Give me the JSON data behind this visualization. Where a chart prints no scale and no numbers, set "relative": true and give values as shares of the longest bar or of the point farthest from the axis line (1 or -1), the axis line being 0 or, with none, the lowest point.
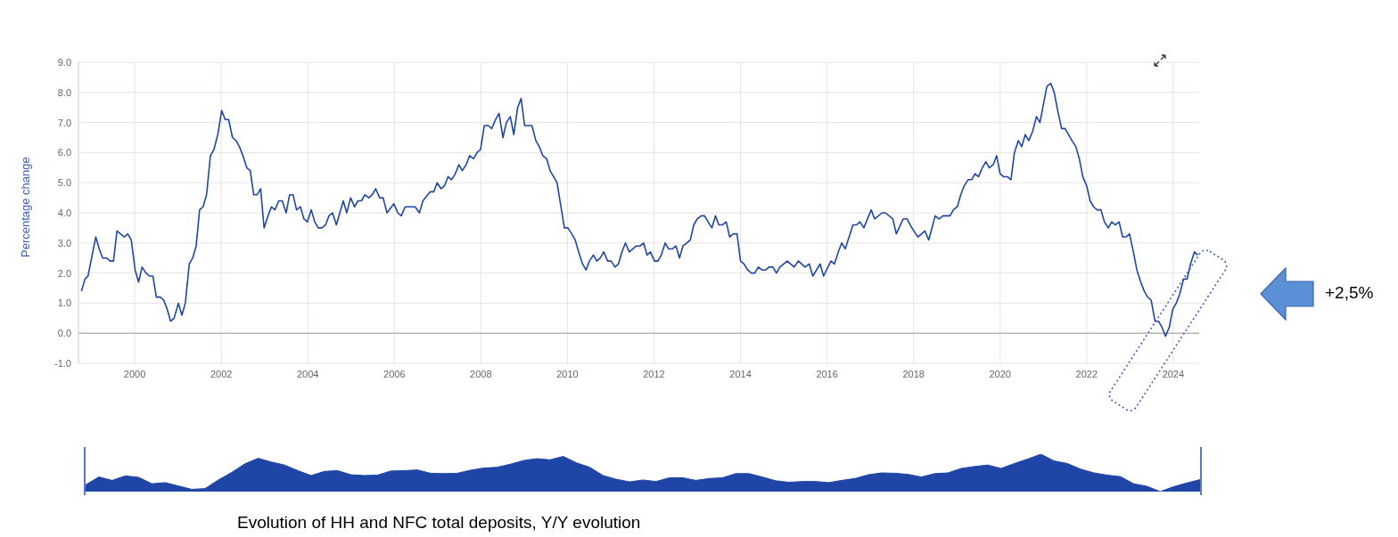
{
  "chart_data": [
    {
      "type": "line",
      "ylabel": "Percentage change",
      "x": [
        1998.77,
        1998.85,
        1998.92,
        1999.1,
        1999.18,
        1999.26,
        1999.35,
        1999.43,
        1999.51,
        1999.59,
        1999.76,
        1999.84,
        1999.92,
        2000.01,
        2000.09,
        2000.17,
        2000.26,
        2000.34,
        2000.42,
        2000.5,
        2000.59,
        2000.67,
        2000.75,
        2000.83,
        2000.91,
        2001.01,
        2001.09,
        2001.17,
        2001.26,
        2001.34,
        2001.42,
        2001.5,
        2001.58,
        2001.66,
        2001.75,
        2001.83,
        2001.92,
        2002.01,
        2002.09,
        2002.17,
        2002.26,
        2002.34,
        2002.42,
        2002.5,
        2002.59,
        2002.67,
        2002.75,
        2002.83,
        2002.91,
        2002.99,
        2003.08,
        2003.16,
        2003.24,
        2003.33,
        2003.41,
        2003.5,
        2003.58,
        2003.66,
        2003.74,
        2003.83,
        2003.91,
        2003.99,
        2004.08,
        2004.16,
        2004.24,
        2004.32,
        2004.41,
        2004.49,
        2004.57,
        2004.66,
        2004.82,
        2004.9,
        2004.99,
        2005.08,
        2005.16,
        2005.24,
        2005.32,
        2005.41,
        2005.49,
        2005.57,
        2005.66,
        2005.74,
        2005.83,
        2005.99,
        2006.08,
        2006.16,
        2006.25,
        2006.48,
        2006.58,
        2006.66,
        2006.83,
        2006.91,
        2006.99,
        2007.08,
        2007.16,
        2007.24,
        2007.32,
        2007.41,
        2007.49,
        2007.57,
        2007.66,
        2007.74,
        2007.83,
        2007.91,
        2007.99,
        2008.08,
        2008.17,
        2008.25,
        2008.34,
        2008.42,
        2008.51,
        2008.59,
        2008.68,
        2008.76,
        2008.85,
        2008.93,
        2009.01,
        2009.18,
        2009.27,
        2009.35,
        2009.43,
        2009.52,
        2009.6,
        2009.68,
        2009.76,
        2009.85,
        2009.93,
        2010.01,
        2010.1,
        2010.18,
        2010.26,
        2010.35,
        2010.43,
        2010.51,
        2010.6,
        2010.68,
        2010.76,
        2010.84,
        2010.93,
        2011.01,
        2011.1,
        2011.18,
        2011.26,
        2011.34,
        2011.43,
        2011.51,
        2011.59,
        2011.68,
        2011.76,
        2011.84,
        2011.92,
        2012.01,
        2012.09,
        2012.17,
        2012.26,
        2012.34,
        2012.42,
        2012.51,
        2012.59,
        2012.67,
        2012.76,
        2012.84,
        2012.92,
        2013.0,
        2013.09,
        2013.17,
        2013.25,
        2013.34,
        2013.42,
        2013.5,
        2013.58,
        2013.67,
        2013.75,
        2013.83,
        2013.92,
        2014.0,
        2014.08,
        2014.17,
        2014.25,
        2014.33,
        2014.41,
        2014.5,
        2014.58,
        2014.66,
        2014.75,
        2014.83,
        2014.91,
        2015.08,
        2015.24,
        2015.34,
        2015.49,
        2015.59,
        2015.67,
        2015.84,
        2015.92,
        2016.09,
        2016.17,
        2016.26,
        2016.34,
        2016.42,
        2016.6,
        2016.68,
        2016.76,
        2016.85,
        2017.02,
        2017.1,
        2017.27,
        2017.35,
        2017.52,
        2017.6,
        2017.76,
        2017.85,
        2017.96,
        2018.1,
        2018.26,
        2018.35,
        2018.5,
        2018.59,
        2018.68,
        2018.84,
        2018.92,
        2019.01,
        2019.09,
        2019.17,
        2019.26,
        2019.34,
        2019.42,
        2019.5,
        2019.59,
        2019.67,
        2019.75,
        2019.84,
        2019.92,
        2020.0,
        2020.08,
        2020.17,
        2020.25,
        2020.33,
        2020.42,
        2020.5,
        2020.58,
        2020.66,
        2020.75,
        2020.84,
        2020.92,
        2021.0,
        2021.08,
        2021.17,
        2021.25,
        2021.33,
        2021.42,
        2021.5,
        2021.58,
        2021.66,
        2021.75,
        2021.83,
        2021.91,
        2022.0,
        2022.08,
        2022.16,
        2022.24,
        2022.33,
        2022.41,
        2022.5,
        2022.58,
        2022.66,
        2022.75,
        2022.83,
        2022.91,
        2022.99,
        2023.08,
        2023.16,
        2023.25,
        2023.33,
        2023.41,
        2023.49,
        2023.58,
        2023.66,
        2023.74,
        2023.82,
        2023.91,
        2023.99,
        2024.07,
        2024.15,
        2024.24,
        2024.32,
        2024.4,
        2024.49,
        2024.57
      ],
      "series": [
        {
          "color": "#1f46a6",
          "values": [
            1.4,
            1.8,
            1.9,
            3.2,
            2.8,
            2.5,
            2.5,
            2.4,
            2.4,
            3.4,
            3.2,
            3.3,
            3.1,
            2.1,
            1.7,
            2.2,
            2.0,
            1.9,
            1.9,
            1.2,
            1.2,
            1.1,
            0.8,
            0.4,
            0.5,
            1.0,
            0.6,
            1.0,
            2.3,
            2.5,
            2.9,
            4.1,
            4.2,
            4.6,
            5.9,
            6.1,
            6.6,
            7.4,
            7.1,
            7.1,
            6.5,
            6.4,
            6.2,
            5.9,
            5.5,
            5.4,
            4.6,
            4.6,
            4.8,
            3.5,
            3.9,
            4.2,
            4.1,
            4.4,
            4.4,
            4.0,
            4.6,
            4.6,
            4.1,
            4.2,
            3.8,
            3.7,
            4.1,
            3.7,
            3.5,
            3.5,
            3.6,
            3.9,
            4.0,
            3.6,
            4.4,
            4.0,
            4.5,
            4.2,
            4.4,
            4.4,
            4.6,
            4.5,
            4.6,
            4.8,
            4.5,
            4.5,
            4.0,
            4.3,
            4.0,
            3.9,
            4.2,
            4.2,
            4.0,
            4.4,
            4.7,
            4.7,
            5.0,
            4.8,
            4.9,
            5.2,
            5.1,
            5.3,
            5.6,
            5.4,
            5.6,
            5.9,
            5.8,
            6.0,
            6.1,
            6.9,
            6.9,
            6.8,
            7.1,
            7.3,
            6.5,
            7.0,
            7.2,
            6.6,
            7.5,
            7.8,
            6.9,
            6.9,
            6.4,
            6.2,
            5.9,
            5.8,
            5.4,
            5.2,
            5.0,
            4.2,
            3.5,
            3.5,
            3.3,
            3.1,
            2.7,
            2.3,
            2.1,
            2.4,
            2.6,
            2.4,
            2.5,
            2.7,
            2.4,
            2.4,
            2.2,
            2.3,
            2.7,
            3.0,
            2.7,
            2.8,
            2.9,
            2.9,
            3.0,
            2.6,
            2.7,
            2.4,
            2.4,
            2.6,
            3.0,
            2.8,
            2.8,
            2.9,
            2.5,
            2.9,
            3.0,
            3.1,
            3.6,
            3.8,
            3.9,
            3.9,
            3.7,
            3.5,
            3.9,
            3.6,
            3.6,
            3.7,
            3.2,
            3.3,
            3.3,
            2.4,
            2.3,
            2.1,
            2.0,
            2.0,
            2.2,
            2.1,
            2.1,
            2.2,
            2.2,
            2.0,
            2.2,
            2.4,
            2.2,
            2.4,
            2.2,
            2.3,
            1.9,
            2.3,
            1.9,
            2.4,
            2.3,
            2.7,
            3.0,
            2.8,
            3.6,
            3.6,
            3.7,
            3.5,
            4.1,
            3.8,
            4.0,
            4.0,
            3.8,
            3.3,
            3.8,
            3.8,
            3.5,
            3.2,
            3.4,
            3.1,
            3.9,
            3.8,
            3.9,
            3.9,
            4.1,
            4.2,
            4.6,
            4.9,
            5.1,
            5.1,
            5.3,
            5.2,
            5.5,
            5.7,
            5.5,
            5.6,
            5.9,
            5.3,
            5.2,
            5.2,
            5.1,
            6.0,
            6.4,
            6.2,
            6.6,
            6.4,
            6.7,
            7.2,
            7.0,
            7.6,
            8.2,
            8.3,
            8.0,
            7.4,
            6.8,
            6.8,
            6.6,
            6.4,
            6.2,
            5.8,
            5.2,
            4.9,
            4.4,
            4.2,
            4.1,
            4.1,
            3.7,
            3.5,
            3.7,
            3.6,
            3.7,
            3.2,
            3.2,
            3.3,
            2.7,
            2.1,
            1.7,
            1.4,
            1.2,
            1.1,
            0.4,
            0.4,
            0.2,
            -0.1,
            0.2,
            0.8,
            1.0,
            1.3,
            1.8,
            1.8,
            2.3,
            2.7,
            2.6
          ]
        }
      ],
      "xlim": [
        1998.7,
        2024.6
      ],
      "xticks": [
        2000,
        2002,
        2004,
        2006,
        2008,
        2010,
        2012,
        2014,
        2016,
        2018,
        2020,
        2022,
        2024
      ],
      "ylim": [
        -1,
        9
      ],
      "yticks": [
        {
          "value": -1,
          "label": "-1.0"
        },
        {
          "value": 0,
          "label": "0.0"
        },
        {
          "value": 1,
          "label": "1.0"
        },
        {
          "value": 2,
          "label": "2.0"
        },
        {
          "value": 3,
          "label": "3.0"
        },
        {
          "value": 4,
          "label": "4.0"
        },
        {
          "value": 5,
          "label": "5.0"
        },
        {
          "value": 6,
          "label": "6.0"
        },
        {
          "value": 7,
          "label": "7.0"
        },
        {
          "value": 8,
          "label": "8.0"
        },
        {
          "value": 9,
          "label": "9.0"
        }
      ],
      "ref_lines": [
        {
          "axis": "y",
          "value": 0,
          "color": "#9a9a9a"
        }
      ],
      "grid": true,
      "marker": "none",
      "line_style": "solid",
      "annotations": [
        "+2,5%",
        "Evolution of HH and NFC total deposits, Y/Y evolution"
      ]
    },
    {
      "type": "area",
      "relative": true,
      "color": "#1f46a6",
      "tick_labels": false,
      "categories": [
        null,
        null,
        null,
        null,
        null,
        null,
        null,
        null,
        null,
        null,
        null,
        null,
        null,
        null,
        null,
        null,
        null,
        null,
        null,
        null,
        null,
        null,
        null,
        null,
        null,
        null,
        null,
        null,
        null,
        null,
        null,
        null,
        null,
        null,
        null,
        null,
        null,
        null,
        null,
        null,
        null,
        null,
        null,
        null,
        null,
        null,
        null,
        null,
        null,
        null,
        null,
        null,
        null,
        null,
        null,
        null,
        null,
        null,
        null,
        null,
        null,
        null,
        null,
        null,
        null,
        null,
        null,
        null,
        null,
        null,
        null,
        null,
        null,
        null,
        null,
        null,
        null,
        null,
        null,
        null,
        null,
        null,
        null,
        null,
        null
      ],
      "values": [
        0.18,
        0.39,
        0.3,
        0.42,
        0.38,
        0.21,
        0.24,
        0.15,
        0.06,
        0.08,
        0.31,
        0.51,
        0.74,
        0.89,
        0.79,
        0.71,
        0.56,
        0.43,
        0.54,
        0.56,
        0.45,
        0.43,
        0.44,
        0.55,
        0.56,
        0.58,
        0.49,
        0.48,
        0.49,
        0.57,
        0.63,
        0.65,
        0.73,
        0.83,
        0.88,
        0.85,
        0.94,
        0.77,
        0.65,
        0.43,
        0.33,
        0.26,
        0.31,
        0.27,
        0.37,
        0.37,
        0.3,
        0.35,
        0.37,
        0.48,
        0.48,
        0.39,
        0.29,
        0.25,
        0.27,
        0.27,
        0.24,
        0.3,
        0.35,
        0.45,
        0.5,
        0.49,
        0.46,
        0.39,
        0.48,
        0.5,
        0.62,
        0.67,
        0.71,
        0.62,
        0.75,
        0.87,
        1,
        0.82,
        0.75,
        0.6,
        0.5,
        0.44,
        0.4,
        0.21,
        0.14,
        0,
        0.13,
        0.23,
        0.32
      ]
    }
  ]
}
